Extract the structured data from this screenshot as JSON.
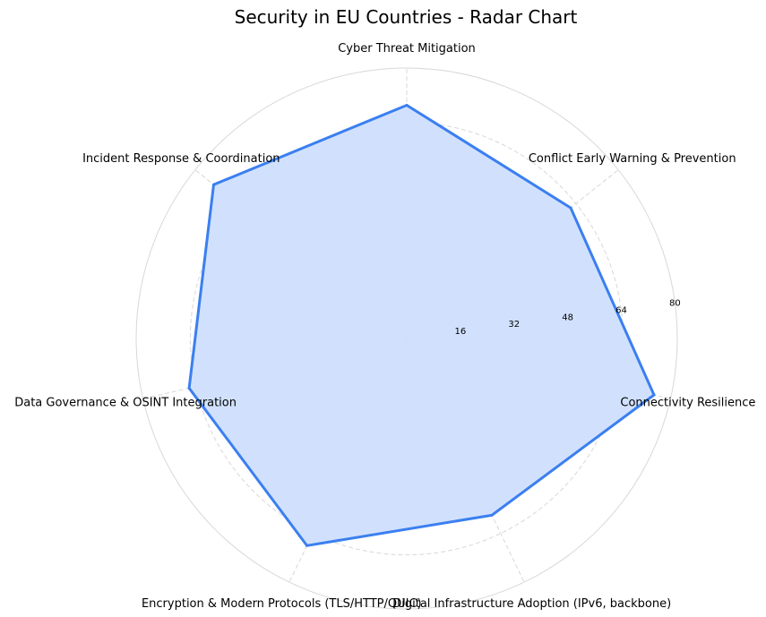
{
  "chart_data": {
    "type": "radar",
    "title": "Security in EU Countries - Radar Chart",
    "categories": [
      "Cyber Threat Mitigation",
      "Conflict Early Warning & Prevention",
      "Connectivity Resilience",
      "Digital Infrastructure Adoption (IPv6, backbone)",
      "Encryption & Modern Protocols (TLS/HTTP/QUIC)",
      "Data Governance & OSINT Integration",
      "Incident Response & Coordination"
    ],
    "series": [
      {
        "values": [
          69,
          62,
          75,
          58,
          68,
          66,
          73
        ]
      }
    ],
    "rlim": [
      0,
      80
    ],
    "rticks": [
      16,
      32,
      48,
      64,
      80
    ],
    "grid": true,
    "colors": {
      "line": "#3b7ff0",
      "fill": "#cfdffd",
      "grid": "#d8d8d8"
    }
  }
}
